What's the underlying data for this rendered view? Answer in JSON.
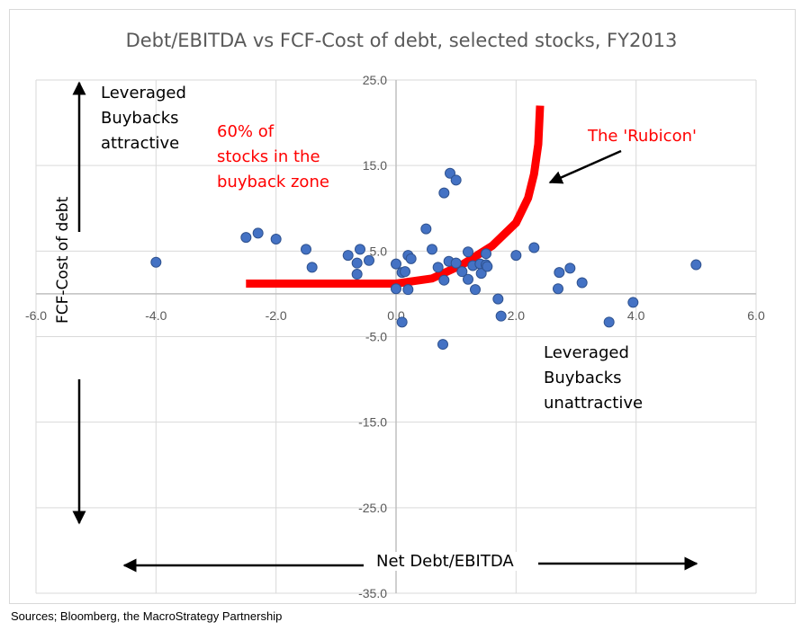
{
  "source": "Sources; Bloomberg, the MacroStrategy Partnership",
  "annotations": {
    "attractive": [
      "Leveraged",
      "Buybacks",
      "attractive"
    ],
    "unattractive": [
      "Leveraged",
      "Buybacks",
      "unattractive"
    ],
    "percent_zone": [
      "60% of",
      "stocks in the",
      "buyback zone"
    ],
    "rubicon": "The 'Rubicon'"
  },
  "chart_data": {
    "type": "scatter",
    "title": "Debt/EBITDA vs FCF-Cost of debt, selected stocks, FY2013",
    "xlabel": "Net Debt/EBITDA",
    "ylabel": "FCF-Cost of debt",
    "xlim": [
      -6.0,
      6.0
    ],
    "ylim": [
      -35.0,
      25.0
    ],
    "x_ticks": [
      "-6.0",
      "-4.0",
      "-2.0",
      "0.0",
      "2.0",
      "4.0",
      "6.0"
    ],
    "y_ticks": [
      "25.0",
      "15.0",
      "5.0",
      "-5.0",
      "-15.0",
      "-25.0",
      "-35.0"
    ],
    "grid": true,
    "marker_color": "#4472c4",
    "curve_color": "#ff0000",
    "points": [
      {
        "x": -4.0,
        "y": 3.7
      },
      {
        "x": -2.5,
        "y": 6.6
      },
      {
        "x": -2.3,
        "y": 7.1
      },
      {
        "x": -2.0,
        "y": 6.4
      },
      {
        "x": -1.5,
        "y": 5.2
      },
      {
        "x": -1.4,
        "y": 3.1
      },
      {
        "x": -0.8,
        "y": 4.5
      },
      {
        "x": -0.65,
        "y": 2.3
      },
      {
        "x": -0.65,
        "y": 3.6
      },
      {
        "x": -0.6,
        "y": 5.2
      },
      {
        "x": -0.45,
        "y": 3.9
      },
      {
        "x": 0.0,
        "y": 3.5
      },
      {
        "x": 0.0,
        "y": 0.6
      },
      {
        "x": 0.1,
        "y": -3.3
      },
      {
        "x": 0.1,
        "y": 2.5
      },
      {
        "x": 0.15,
        "y": 2.6
      },
      {
        "x": 0.2,
        "y": 0.5
      },
      {
        "x": 0.2,
        "y": 4.5
      },
      {
        "x": 0.25,
        "y": 4.1
      },
      {
        "x": 0.5,
        "y": 7.6
      },
      {
        "x": 0.6,
        "y": 5.2
      },
      {
        "x": 0.7,
        "y": 3.1
      },
      {
        "x": 0.78,
        "y": -5.9
      },
      {
        "x": 0.8,
        "y": 1.6
      },
      {
        "x": 0.8,
        "y": 11.8
      },
      {
        "x": 0.88,
        "y": 3.8
      },
      {
        "x": 0.9,
        "y": 14.1
      },
      {
        "x": 1.0,
        "y": 13.3
      },
      {
        "x": 1.0,
        "y": 3.6
      },
      {
        "x": 1.1,
        "y": 2.6
      },
      {
        "x": 1.2,
        "y": 1.7
      },
      {
        "x": 1.2,
        "y": 4.9
      },
      {
        "x": 1.28,
        "y": 3.3
      },
      {
        "x": 1.32,
        "y": 0.5
      },
      {
        "x": 1.4,
        "y": 3.5
      },
      {
        "x": 1.42,
        "y": 2.4
      },
      {
        "x": 1.5,
        "y": 3.4
      },
      {
        "x": 1.5,
        "y": 4.7
      },
      {
        "x": 1.52,
        "y": 3.2
      },
      {
        "x": 1.7,
        "y": -0.6
      },
      {
        "x": 1.75,
        "y": -2.6
      },
      {
        "x": 2.0,
        "y": 4.5
      },
      {
        "x": 2.3,
        "y": 5.4
      },
      {
        "x": 2.7,
        "y": 0.6
      },
      {
        "x": 2.72,
        "y": 2.5
      },
      {
        "x": 2.9,
        "y": 3.0
      },
      {
        "x": 3.1,
        "y": 1.3
      },
      {
        "x": 3.55,
        "y": -3.3
      },
      {
        "x": 3.95,
        "y": -1.0
      },
      {
        "x": 5.0,
        "y": 3.4
      }
    ]
  }
}
